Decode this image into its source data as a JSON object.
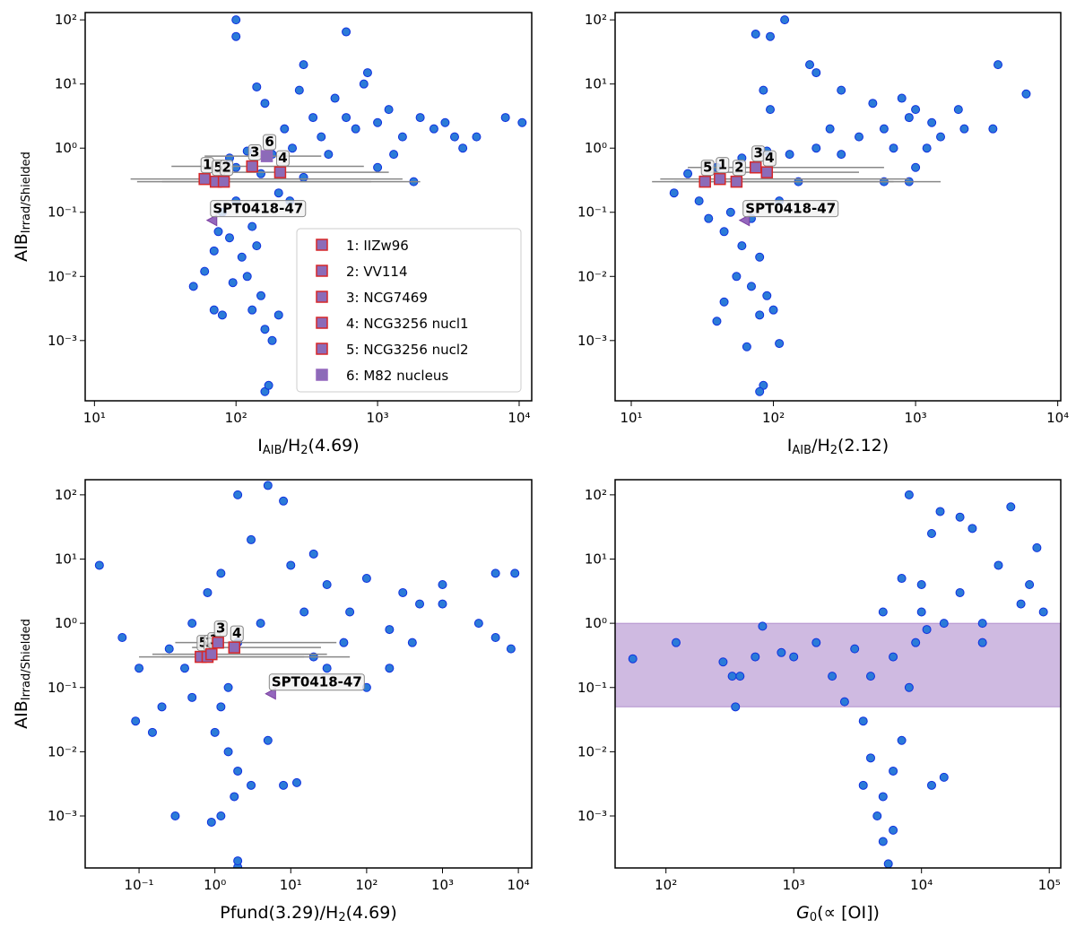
{
  "chart_data": [
    {
      "type": "scatter",
      "log_x": true,
      "log_y": true,
      "xlabel": [
        "I",
        "AIB",
        "/H",
        "2",
        "(4.69)"
      ],
      "ylabel": [
        "AIB",
        "Irrad/Shielded"
      ],
      "xlim": [
        8.6,
        12270
      ],
      "ylim": [
        0.000115,
        130
      ],
      "xticks": [
        {
          "value": 10,
          "label": "10¹"
        },
        {
          "value": 100,
          "label": "10²"
        },
        {
          "value": 1000,
          "label": "10³"
        },
        {
          "value": 10000,
          "label": "10⁴"
        }
      ],
      "yticks": [
        {
          "value": 0.001,
          "label": "10⁻³"
        },
        {
          "value": 0.01,
          "label": "10⁻²"
        },
        {
          "value": 0.1,
          "label": "10⁻¹"
        },
        {
          "value": 1,
          "label": "10⁰"
        },
        {
          "value": 10,
          "label": "10¹"
        },
        {
          "value": 100,
          "label": "10²"
        }
      ],
      "points": {
        "color": "#2b7bd8",
        "edge": "#1030e0",
        "x": [
          100,
          100,
          600,
          300,
          280,
          140,
          160,
          500,
          800,
          850,
          1200,
          2000,
          3000,
          5000,
          8000,
          10500,
          4000,
          1500,
          700,
          400,
          250,
          180,
          120,
          90,
          1000,
          1800,
          300,
          200,
          100,
          80,
          130,
          90,
          110,
          70,
          120,
          95,
          150,
          60,
          50,
          130,
          160,
          180,
          160,
          170,
          70,
          80,
          200,
          1000,
          600,
          2500,
          3500,
          450,
          350,
          220,
          1300,
          150,
          75,
          140,
          100,
          240
        ],
        "y": [
          100,
          55,
          65,
          20,
          8,
          9,
          5,
          6,
          10,
          15,
          4,
          3,
          2.5,
          1.5,
          3,
          2.5,
          1,
          1.5,
          2,
          1.5,
          1,
          0.8,
          0.9,
          0.7,
          0.5,
          0.3,
          0.35,
          0.2,
          0.15,
          0.1,
          0.06,
          0.04,
          0.02,
          0.025,
          0.01,
          0.008,
          0.005,
          0.012,
          0.007,
          0.003,
          0.0015,
          0.001,
          0.00016,
          0.0002,
          0.003,
          0.0025,
          0.0025,
          2.5,
          3,
          2,
          1.5,
          0.8,
          3,
          2,
          0.8,
          0.4,
          0.05,
          0.03,
          0.5,
          0.15
        ]
      },
      "sources": {
        "labels": [
          "1",
          "5",
          "2",
          "3",
          "6",
          "4"
        ],
        "x": [
          60,
          72,
          82,
          130,
          165,
          205
        ],
        "y": [
          0.33,
          0.3,
          0.3,
          0.52,
          0.75,
          0.42
        ],
        "xlo": [
          18,
          20,
          30,
          35,
          60,
          70
        ],
        "xhi": [
          1500,
          2000,
          900,
          800,
          400,
          1200
        ],
        "edges": [
          "#d62728",
          "#d62728",
          "#d62728",
          "#d62728",
          "#9467bd",
          "#d62728"
        ]
      },
      "spt": {
        "label": "SPT0418-47",
        "x": 68,
        "y": 0.075
      },
      "legend": {
        "loc": "lower right",
        "entries": [
          "1: IIZw96",
          "2: VV114",
          "3: NCG7469",
          "4: NCG3256 nucl1",
          "5: NCG3256 nucl2",
          "6: M82 nucleus"
        ],
        "edges": [
          "#d62728",
          "#d62728",
          "#d62728",
          "#d62728",
          "#d62728",
          "#9467bd"
        ]
      }
    },
    {
      "type": "scatter",
      "log_x": true,
      "log_y": true,
      "xlabel": [
        "I",
        "AIB",
        "/H",
        "2",
        "(2.12)"
      ],
      "xlim": [
        7.7,
        10500
      ],
      "ylim": [
        0.000115,
        130
      ],
      "xticks": [
        {
          "value": 10,
          "label": "10¹"
        },
        {
          "value": 100,
          "label": "10²"
        },
        {
          "value": 1000,
          "label": "10³"
        },
        {
          "value": 10000,
          "label": "10⁴"
        }
      ],
      "yticks": [
        {
          "value": 0.001,
          "label": "10⁻³"
        },
        {
          "value": 0.01,
          "label": "10⁻²"
        },
        {
          "value": 0.1,
          "label": "10⁻¹"
        },
        {
          "value": 1,
          "label": "10⁰"
        },
        {
          "value": 10,
          "label": "10¹"
        },
        {
          "value": 100,
          "label": "10²"
        }
      ],
      "points": {
        "color": "#2b7bd8",
        "edge": "#1030e0",
        "x": [
          120,
          75,
          95,
          85,
          95,
          180,
          200,
          300,
          500,
          800,
          1000,
          2000,
          3800,
          6000,
          3500,
          1200,
          600,
          400,
          200,
          130,
          90,
          60,
          40,
          20,
          25,
          30,
          50,
          70,
          45,
          60,
          80,
          55,
          70,
          90,
          45,
          100,
          80,
          65,
          85,
          80,
          110,
          40,
          1500,
          2200,
          900,
          1000,
          600,
          300,
          250,
          150,
          110,
          35,
          900,
          1300,
          700
        ],
        "y": [
          100,
          60,
          55,
          8,
          4,
          20,
          15,
          8,
          5,
          6,
          4,
          4,
          20,
          7,
          2,
          1,
          2,
          1.5,
          1,
          0.8,
          0.9,
          0.7,
          0.5,
          0.2,
          0.4,
          0.15,
          0.1,
          0.08,
          0.05,
          0.03,
          0.02,
          0.01,
          0.007,
          0.005,
          0.004,
          0.003,
          0.0025,
          0.0008,
          0.0002,
          0.00016,
          0.0009,
          0.002,
          1.5,
          2,
          3,
          0.5,
          0.3,
          0.8,
          2,
          0.3,
          0.15,
          0.08,
          0.3,
          2.5,
          1
        ]
      },
      "sources": {
        "labels": [
          "5",
          "1",
          "2",
          "3",
          "4"
        ],
        "x": [
          33,
          42,
          55,
          75,
          90
        ],
        "y": [
          0.3,
          0.33,
          0.3,
          0.5,
          0.42
        ],
        "xlo": [
          14,
          16,
          20,
          25,
          35
        ],
        "xhi": [
          700,
          900,
          1500,
          600,
          400
        ],
        "edges": [
          "#d62728",
          "#d62728",
          "#d62728",
          "#d62728",
          "#d62728"
        ]
      },
      "spt": {
        "label": "SPT0418-47",
        "x": 63,
        "y": 0.075
      }
    },
    {
      "type": "scatter",
      "log_x": true,
      "log_y": true,
      "xlabel": [
        "Pfund(3.29)/H",
        "2",
        "(4.69)"
      ],
      "ylabel": [
        "AIB",
        "Irrad/Shielded"
      ],
      "xlim": [
        0.0195,
        15000
      ],
      "ylim": [
        0.000155,
        172
      ],
      "xticks": [
        {
          "value": 0.1,
          "label": "10⁻¹"
        },
        {
          "value": 1,
          "label": "10⁰"
        },
        {
          "value": 10,
          "label": "10¹"
        },
        {
          "value": 100,
          "label": "10²"
        },
        {
          "value": 1000,
          "label": "10³"
        },
        {
          "value": 10000,
          "label": "10⁴"
        }
      ],
      "yticks": [
        {
          "value": 0.001,
          "label": "10⁻³"
        },
        {
          "value": 0.01,
          "label": "10⁻²"
        },
        {
          "value": 0.1,
          "label": "10⁻¹"
        },
        {
          "value": 1,
          "label": "10⁰"
        },
        {
          "value": 10,
          "label": "10¹"
        },
        {
          "value": 100,
          "label": "10²"
        }
      ],
      "points": {
        "color": "#2b7bd8",
        "edge": "#1030e0",
        "x": [
          0.03,
          0.06,
          0.1,
          0.09,
          0.15,
          0.2,
          0.3,
          0.5,
          0.4,
          0.8,
          1.2,
          2,
          5,
          3,
          8,
          10,
          20,
          30,
          100,
          300,
          1000,
          3000,
          5000,
          9000,
          5000,
          8000,
          400,
          200,
          60,
          15,
          4,
          2,
          1.5,
          1.2,
          1,
          1.5,
          2,
          1.8,
          1.2,
          2,
          2,
          8,
          12,
          3,
          0.9,
          5,
          30,
          100,
          50,
          1000,
          500,
          200,
          20,
          0.5,
          0.25
        ],
        "y": [
          8,
          0.6,
          0.2,
          0.03,
          0.02,
          0.05,
          0.001,
          1,
          0.2,
          3,
          6,
          100,
          140,
          20,
          80,
          8,
          12,
          4,
          5,
          3,
          2,
          1,
          0.6,
          6,
          6,
          0.4,
          0.5,
          0.8,
          1.5,
          1.5,
          1,
          0.5,
          0.1,
          0.05,
          0.02,
          0.01,
          0.005,
          0.002,
          0.001,
          0.00016,
          0.0002,
          0.003,
          0.0033,
          0.003,
          0.0008,
          0.015,
          0.2,
          0.1,
          0.5,
          4,
          2,
          0.2,
          0.3,
          0.07,
          0.4
        ]
      },
      "sources": {
        "labels": [
          "5",
          "2",
          "1",
          "3",
          "4"
        ],
        "x": [
          0.65,
          0.8,
          0.9,
          1.1,
          1.8
        ],
        "y": [
          0.3,
          0.3,
          0.33,
          0.5,
          0.42
        ],
        "xlo": [
          0.1,
          0.2,
          0.15,
          0.3,
          0.5
        ],
        "xhi": [
          60,
          15,
          30,
          40,
          25
        ],
        "edges": [
          "#d62728",
          "#d62728",
          "#d62728",
          "#d62728",
          "#d62728"
        ]
      },
      "spt": {
        "label": "SPT0418-47",
        "x": 5.5,
        "y": 0.08
      }
    },
    {
      "type": "scatter",
      "log_x": true,
      "log_y": true,
      "xlabel": [
        "G",
        "0",
        "(∝ [OI])"
      ],
      "xlim": [
        40,
        123000
      ],
      "ylim": [
        0.000155,
        172
      ],
      "xticks": [
        {
          "value": 100,
          "label": "10²"
        },
        {
          "value": 1000,
          "label": "10³"
        },
        {
          "value": 10000,
          "label": "10⁴"
        },
        {
          "value": 100000,
          "label": "10⁵"
        }
      ],
      "yticks": [
        {
          "value": 0.001,
          "label": "10⁻³"
        },
        {
          "value": 0.01,
          "label": "10⁻²"
        },
        {
          "value": 0.1,
          "label": "10⁻¹"
        },
        {
          "value": 1,
          "label": "10⁰"
        },
        {
          "value": 10,
          "label": "10¹"
        },
        {
          "value": 100,
          "label": "10²"
        }
      ],
      "band": [
        0.05,
        1
      ],
      "band_color": "#9467bd",
      "points": {
        "color": "#2b7bd8",
        "edge": "#1030e0",
        "x": [
          55,
          120,
          280,
          330,
          350,
          380,
          570,
          500,
          800,
          1000,
          1500,
          2000,
          2500,
          3000,
          3500,
          4000,
          3500,
          4500,
          5000,
          5500,
          6000,
          5000,
          6000,
          7000,
          8000,
          8000,
          12000,
          14000,
          20000,
          25000,
          50000,
          80000,
          60000,
          90000,
          30000,
          20000,
          15000,
          10000,
          7000,
          9000,
          12000,
          15000,
          6000,
          4000,
          10000,
          40000,
          70000,
          30000,
          5000,
          11000
        ],
        "y": [
          0.28,
          0.5,
          0.25,
          0.15,
          0.05,
          0.15,
          0.9,
          0.3,
          0.35,
          0.3,
          0.5,
          0.15,
          0.06,
          0.4,
          0.03,
          0.008,
          0.003,
          0.001,
          0.0004,
          0.00018,
          0.0006,
          0.002,
          0.005,
          0.015,
          0.1,
          100,
          25,
          55,
          45,
          30,
          65,
          15,
          2,
          1.5,
          1,
          3,
          1,
          1.5,
          5,
          0.5,
          0.003,
          0.004,
          0.3,
          0.15,
          4,
          8,
          4,
          0.5,
          1.5,
          0.8
        ]
      }
    }
  ]
}
